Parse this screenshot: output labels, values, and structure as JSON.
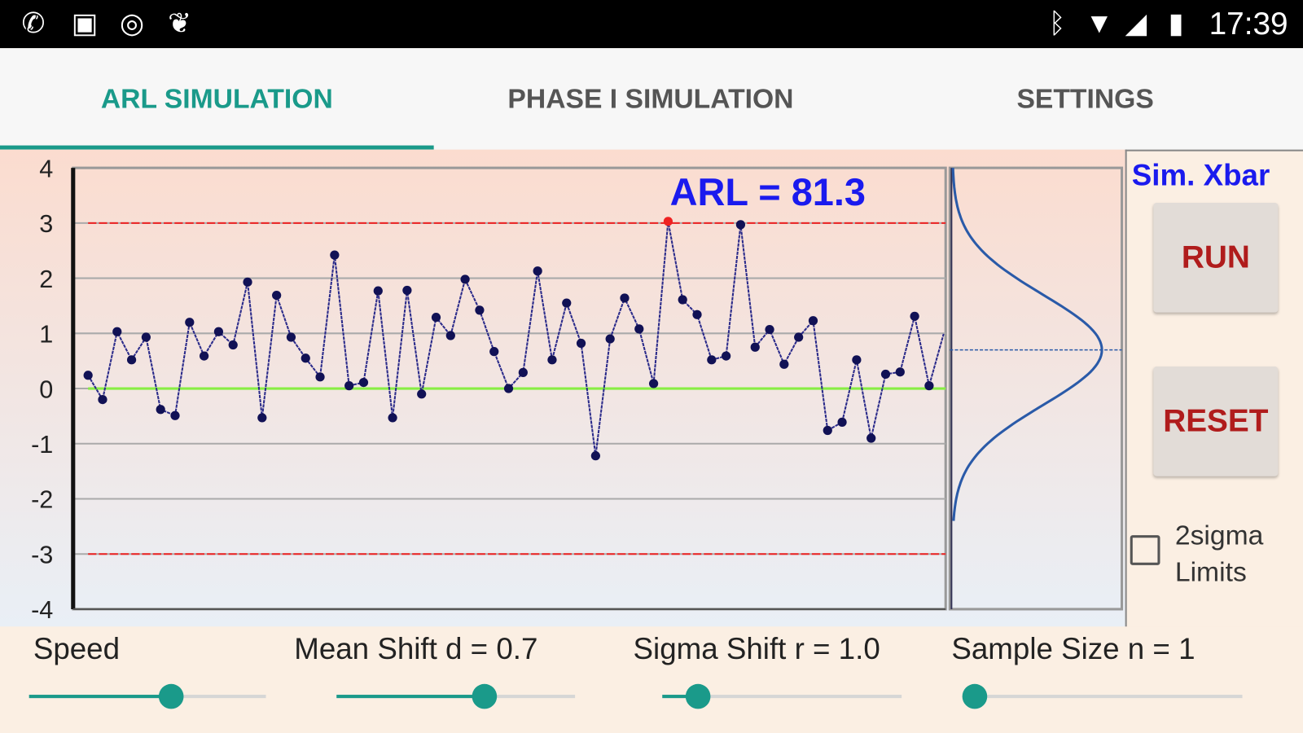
{
  "status_bar": {
    "time": "17:39",
    "icons": [
      "whatsapp-icon",
      "gallery-icon",
      "sync-icon",
      "twitter-icon",
      "bluetooth-icon",
      "wifi-icon",
      "signal-icon",
      "battery-icon"
    ]
  },
  "tabs": [
    {
      "label": "ARL SIMULATION",
      "active": true
    },
    {
      "label": "PHASE I SIMULATION",
      "active": false
    },
    {
      "label": "SETTINGS",
      "active": false
    }
  ],
  "panel": {
    "title": "Sim. Xbar",
    "run_label": "RUN",
    "reset_label": "RESET",
    "checkbox_label": "2sigma Limits",
    "checkbox_checked": false
  },
  "sliders": [
    {
      "label": "Speed",
      "fraction": 0.6
    },
    {
      "label": "Mean Shift d = 0.7",
      "fraction": 0.62
    },
    {
      "label": "Sigma Shift r = 1.0",
      "fraction": 0.15
    },
    {
      "label": "Sample Size n = 1",
      "fraction": 0.04
    }
  ],
  "colors": {
    "accent": "#1a9a8a",
    "limit": "#ee2222",
    "center": "#88ee44",
    "series": "#2a2a8a",
    "arl": "#1a1aee"
  },
  "chart_data": {
    "type": "line",
    "annotation": "ARL = 81.3",
    "ylim": [
      -4,
      4
    ],
    "yticks": [
      "4",
      "3",
      "2",
      "1",
      "0",
      "-1",
      "-2",
      "-3",
      "-4"
    ],
    "ucl": 3,
    "lcl": -3,
    "center": 0,
    "mean_shift": 0.7,
    "sigma": 1.0,
    "values": [
      0.24,
      -0.2,
      1.03,
      0.52,
      0.93,
      -0.38,
      -0.49,
      1.2,
      0.59,
      1.03,
      0.79,
      1.93,
      -0.53,
      1.69,
      0.93,
      0.55,
      0.21,
      2.42,
      0.05,
      0.11,
      1.77,
      -0.53,
      1.78,
      -0.1,
      1.29,
      0.96,
      1.98,
      1.42,
      0.67,
      0.0,
      0.29,
      2.13,
      0.52,
      1.55,
      0.82,
      -1.22,
      0.9,
      1.64,
      1.08,
      0.09,
      3.03,
      1.61,
      1.34,
      0.52,
      0.59,
      2.97,
      0.75,
      1.07,
      0.44,
      0.93,
      1.23,
      -0.76,
      -0.61,
      0.52,
      -0.9,
      0.26,
      0.3,
      1.31,
      0.05,
      0.99
    ],
    "out_of_control_index": 40
  }
}
